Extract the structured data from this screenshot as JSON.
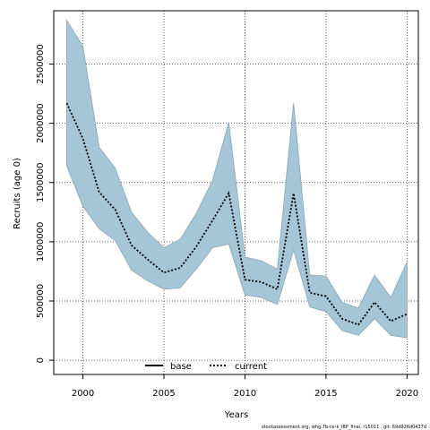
{
  "chart_data": {
    "type": "line",
    "xlabel": "Years",
    "ylabel": "Recruits (age 0)",
    "xlim": [
      1998.2,
      20207
    ],
    "ylim": [
      -120000,
      2950000
    ],
    "x_ticks": [
      2000,
      2005,
      2010,
      2015,
      2020
    ],
    "x_tick_labels": [
      "2000",
      "2005",
      "2010",
      "2015",
      "2020"
    ],
    "y_ticks": [
      0,
      500000,
      1000000,
      1500000,
      2000000,
      2500000
    ],
    "y_tick_labels": [
      "0",
      "500000",
      "1000000",
      "1500000",
      "2000000",
      "2500000"
    ],
    "grid": true,
    "legend_placement": "bottom-center",
    "colors": {
      "band": "#a5c6d7",
      "band_edge": "#8aa5b3",
      "base": "#000000",
      "current": "#000000"
    },
    "x": [
      1999,
      2000,
      2001,
      2002,
      2003,
      2004,
      2005,
      2006,
      2007,
      2008,
      2009,
      2010,
      2011,
      2012,
      2013,
      2014,
      2015,
      2016,
      2017,
      2018,
      2019,
      2020
    ],
    "band_upper": [
      2870000,
      2650000,
      1800000,
      1620000,
      1250000,
      1080000,
      950000,
      1020000,
      1240000,
      1520000,
      2010000,
      870000,
      840000,
      770000,
      2170000,
      720000,
      710000,
      490000,
      440000,
      720000,
      530000,
      830000
    ],
    "band_lower": [
      1640000,
      1300000,
      1110000,
      1010000,
      760000,
      670000,
      600000,
      610000,
      770000,
      950000,
      980000,
      550000,
      530000,
      470000,
      930000,
      450000,
      410000,
      250000,
      210000,
      350000,
      210000,
      190000
    ],
    "series": [
      {
        "name": "base",
        "style": "solid",
        "values": [
          2170000,
          1870000,
          1420000,
          1270000,
          970000,
          850000,
          740000,
          780000,
          960000,
          1180000,
          1410000,
          680000,
          660000,
          600000,
          1410000,
          570000,
          540000,
          350000,
          300000,
          490000,
          330000,
          390000
        ]
      },
      {
        "name": "current",
        "style": "dotted",
        "values": [
          2170000,
          1870000,
          1420000,
          1270000,
          970000,
          850000,
          740000,
          780000,
          960000,
          1180000,
          1410000,
          680000,
          660000,
          600000,
          1410000,
          570000,
          540000,
          350000,
          300000,
          490000,
          330000,
          390000
        ]
      }
    ]
  },
  "footer": "stockassessment.org, whg.7b-ce-k_IBP_final, r15011 , git: 69d926d0437d"
}
